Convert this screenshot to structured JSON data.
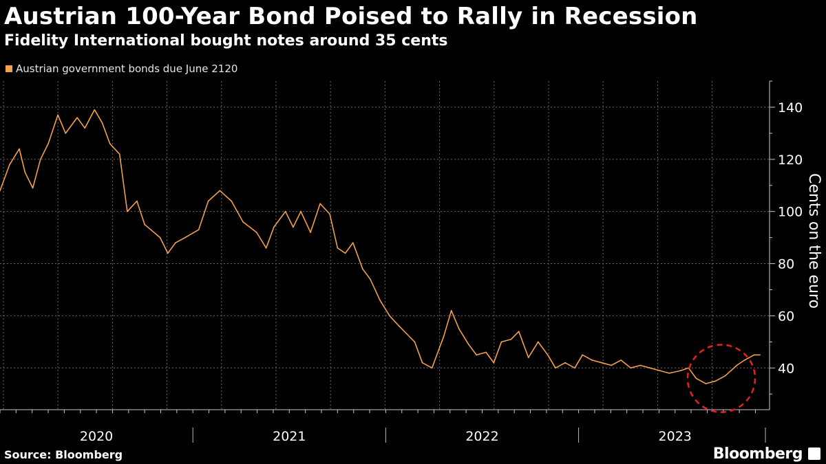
{
  "header": {
    "title": "Austrian 100-Year Bond Poised to Rally in Recession",
    "subtitle": "Fidelity International bought notes around 35 cents"
  },
  "footer": {
    "source": "Source: Bloomberg",
    "brand": "Bloomberg"
  },
  "colors": {
    "series": "#f5a04a",
    "highlight": "#e8211f",
    "grid": "#6a6a6a",
    "background": "#000000"
  },
  "chart_data": {
    "type": "line",
    "title": "Austrian 100-Year Bond Poised to Rally in Recession",
    "subtitle": "Fidelity International bought notes around 35 cents",
    "xlabel": "",
    "ylabel": "Cents on the euro",
    "ylim": [
      24,
      150
    ],
    "xlim": [
      2020.0,
      2023.99
    ],
    "y_ticks": [
      40,
      60,
      80,
      100,
      120,
      140
    ],
    "x_tick_labels": [
      {
        "label": "2020",
        "x": 2020.5
      },
      {
        "label": "2021",
        "x": 2021.5
      },
      {
        "label": "2022",
        "x": 2022.5
      },
      {
        "label": "2023",
        "x": 2023.5
      }
    ],
    "year_boundaries": [
      2021.0,
      2022.0,
      2023.0
    ],
    "grid": true,
    "legend_position": "top-left",
    "series": [
      {
        "name": "Austrian government bonds due June 2120",
        "x": [
          2020.0,
          2020.05,
          2020.1,
          2020.13,
          2020.17,
          2020.21,
          2020.25,
          2020.3,
          2020.34,
          2020.4,
          2020.44,
          2020.49,
          2020.53,
          2020.57,
          2020.62,
          2020.66,
          2020.71,
          2020.75,
          2020.83,
          2020.87,
          2020.91,
          2020.96,
          2021.03,
          2021.08,
          2021.14,
          2021.2,
          2021.26,
          2021.33,
          2021.38,
          2021.42,
          2021.48,
          2021.52,
          2021.56,
          2021.61,
          2021.66,
          2021.71,
          2021.75,
          2021.79,
          2021.83,
          2021.88,
          2021.92,
          2021.97,
          2022.02,
          2022.07,
          2022.11,
          2022.15,
          2022.19,
          2022.24,
          2022.3,
          2022.34,
          2022.38,
          2022.43,
          2022.47,
          2022.52,
          2022.56,
          2022.6,
          2022.65,
          2022.69,
          2022.74,
          2022.79,
          2022.84,
          2022.88,
          2022.93,
          2022.98,
          2023.02,
          2023.07,
          2023.12,
          2023.17,
          2023.22,
          2023.27,
          2023.32,
          2023.37,
          2023.42,
          2023.47,
          2023.53,
          2023.57,
          2023.61,
          2023.66,
          2023.71,
          2023.76,
          2023.82,
          2023.86,
          2023.91,
          2023.94
        ],
        "values": [
          108,
          118,
          124,
          115,
          109,
          120,
          126,
          137,
          130,
          136,
          132,
          139,
          134,
          126,
          122,
          100,
          104,
          95,
          90,
          84,
          88,
          90,
          93,
          104,
          108,
          104,
          96,
          92,
          86,
          94,
          100,
          94,
          100,
          92,
          103,
          99,
          86,
          84,
          88,
          78,
          74,
          66,
          60,
          56,
          53,
          50,
          42,
          40,
          52,
          62,
          55,
          49,
          45,
          46,
          42,
          50,
          51,
          54,
          44,
          50,
          45,
          40,
          42,
          40,
          45,
          43,
          42,
          41,
          43,
          40,
          41,
          40,
          39,
          38,
          39,
          40,
          36,
          34,
          35,
          37,
          41,
          43,
          45,
          45
        ]
      }
    ],
    "annotations": [
      {
        "type": "dashed-circle",
        "center": [
          2023.74,
          36
        ],
        "note": "highlight of ~35 cent trough"
      }
    ]
  }
}
